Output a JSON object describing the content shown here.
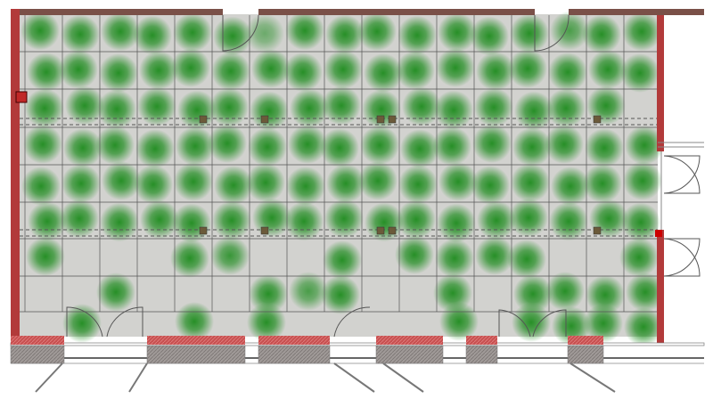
{
  "plan": {
    "colors": {
      "floor": "#d2d2cf",
      "grid_line": "#555555",
      "exterior_wall": "#b23a3a",
      "top_wall": "#7a5048",
      "heat": "#1e8c1e",
      "column": "#6b5a3a",
      "footing": "#9a9595"
    },
    "grid": {
      "rows": 9,
      "cols": 17
    },
    "heatmap": [
      [
        1,
        1,
        1,
        1,
        1,
        1,
        0.6,
        1,
        1,
        1,
        1,
        1,
        1,
        1,
        0.8,
        1,
        1
      ],
      [
        1,
        1,
        1,
        1,
        1,
        1,
        1,
        1,
        1,
        1,
        1,
        1,
        1,
        1,
        1,
        1,
        1
      ],
      [
        1,
        1,
        1,
        1,
        1,
        1,
        1,
        1,
        1,
        1,
        1,
        1,
        1,
        1,
        1,
        1,
        0
      ],
      [
        1,
        1,
        1,
        1,
        1,
        1,
        1,
        1,
        1,
        1,
        1,
        1,
        1,
        1,
        1,
        1,
        1
      ],
      [
        1,
        1,
        1,
        1,
        1,
        1,
        1,
        1,
        1,
        1,
        1,
        1,
        1,
        1,
        1,
        1,
        1
      ],
      [
        1,
        1,
        1,
        1,
        1,
        1,
        1,
        1,
        1,
        1,
        1,
        1,
        1,
        1,
        1,
        1,
        1
      ],
      [
        1,
        0,
        0,
        0,
        1,
        0.9,
        0,
        0,
        1,
        0,
        1,
        1,
        1,
        1,
        0,
        0,
        1
      ],
      [
        0,
        0,
        1,
        0,
        0,
        0,
        1,
        0.8,
        1,
        0,
        0,
        1,
        0,
        1,
        1,
        1,
        1
      ],
      [
        0,
        1,
        0,
        0,
        1,
        0,
        1,
        0,
        0,
        0,
        0,
        1,
        0,
        1,
        1,
        1,
        1
      ]
    ]
  }
}
